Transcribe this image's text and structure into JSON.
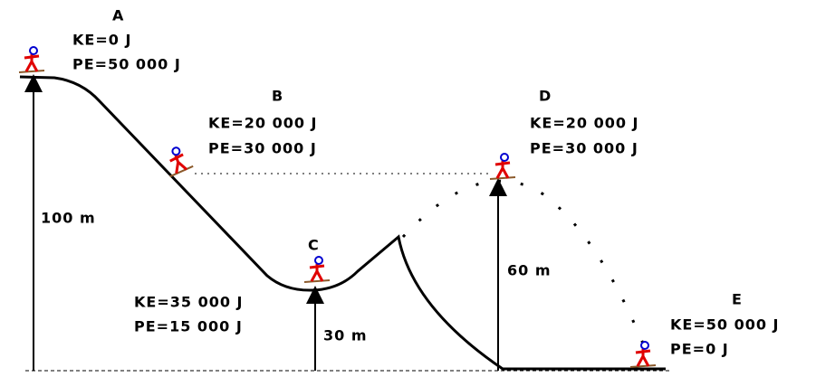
{
  "points": [
    {
      "label": "A",
      "ke": "KE=0 J",
      "pe": "PE=50 000 J"
    },
    {
      "label": "B",
      "ke": "KE=20 000 J",
      "pe": "PE=30 000 J"
    },
    {
      "label": "C",
      "ke": "KE=35 000 J",
      "pe": "PE=15 000 J"
    },
    {
      "label": "D",
      "ke": "KE=20 000 J",
      "pe": "PE=30 000 J"
    },
    {
      "label": "E",
      "ke": "KE=50 000 J",
      "pe": "PE=0 J"
    }
  ],
  "heights": [
    "100 m",
    "30 m",
    "60 m"
  ]
}
